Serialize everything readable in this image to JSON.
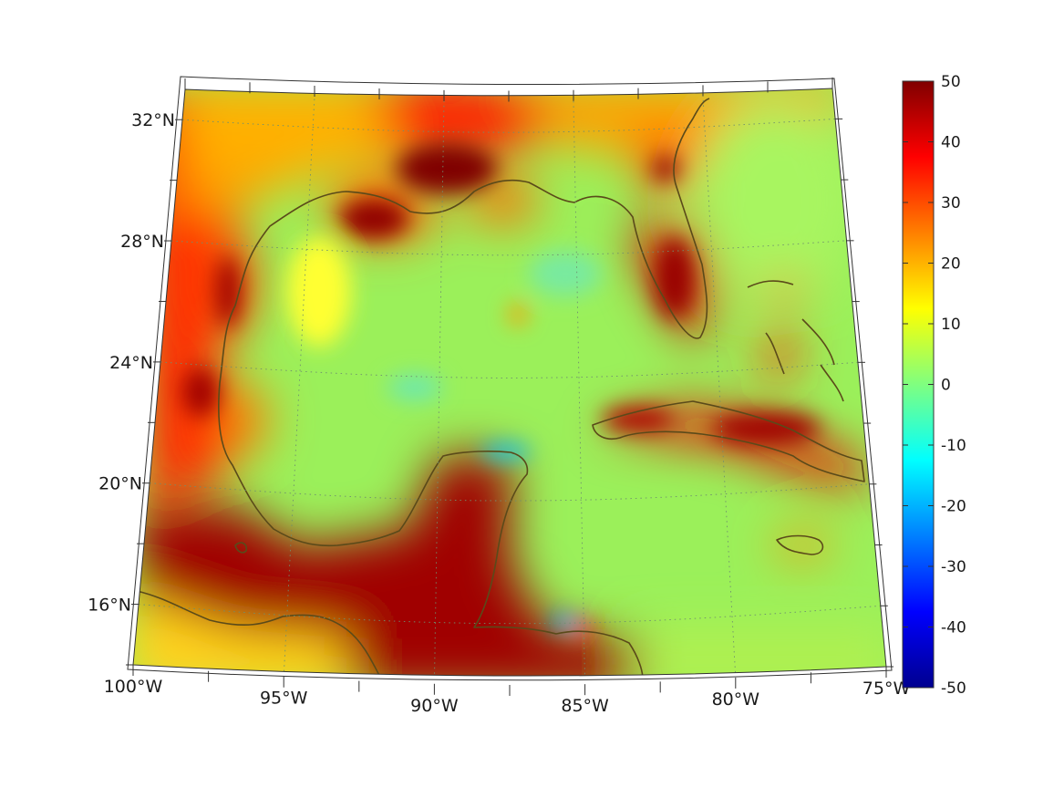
{
  "map": {
    "type": "heatmap",
    "region": "Gulf of Mexico and Caribbean",
    "projection": "conic",
    "longitude_range": [
      -100,
      -75
    ],
    "latitude_range": [
      14,
      33
    ],
    "graticule": "dotted",
    "coastline_color": "#5a4a1a",
    "lon_ticks": [
      {
        "value": -100,
        "label": "100°W"
      },
      {
        "value": -95,
        "label": "95°W"
      },
      {
        "value": -90,
        "label": "90°W"
      },
      {
        "value": -85,
        "label": "85°W"
      },
      {
        "value": -80,
        "label": "80°W"
      },
      {
        "value": -75,
        "label": "75°W"
      }
    ],
    "lat_ticks": [
      {
        "value": 32,
        "label": "32°N"
      },
      {
        "value": 28,
        "label": "28°N"
      },
      {
        "value": 24,
        "label": "24°N"
      },
      {
        "value": 20,
        "label": "20°N"
      },
      {
        "value": 16,
        "label": "16°N"
      }
    ]
  },
  "colorbar": {
    "colormap": "jet",
    "range": [
      -50,
      50
    ],
    "ticks": [
      {
        "value": 50,
        "label": "50"
      },
      {
        "value": 40,
        "label": "40"
      },
      {
        "value": 30,
        "label": "30"
      },
      {
        "value": 20,
        "label": "20"
      },
      {
        "value": 10,
        "label": "10"
      },
      {
        "value": 0,
        "label": "0"
      },
      {
        "value": -10,
        "label": "-10"
      },
      {
        "value": -20,
        "label": "-20"
      },
      {
        "value": -30,
        "label": "-30"
      },
      {
        "value": -40,
        "label": "-40"
      },
      {
        "value": -50,
        "label": "-50"
      }
    ]
  }
}
